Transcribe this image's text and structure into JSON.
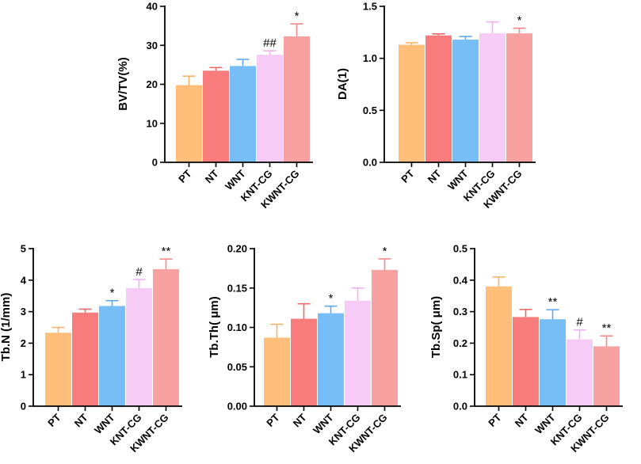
{
  "chart_data": [
    {
      "type": "bar",
      "ylabel": "BV/TV(%)",
      "categories": [
        "PT",
        "NT",
        "WNT",
        "KNT-CG",
        "KWNT-CG"
      ],
      "values": [
        19.8,
        23.5,
        24.7,
        27.6,
        32.3
      ],
      "errors": [
        2.3,
        0.8,
        1.7,
        1.0,
        3.2
      ],
      "significance": [
        "",
        "",
        "",
        "##",
        "*"
      ],
      "ylim": [
        0,
        40
      ],
      "yticks": [
        0,
        10,
        20,
        30,
        40
      ],
      "ytick_labels": [
        "0",
        "10",
        "20",
        "30",
        "40"
      ]
    },
    {
      "type": "bar",
      "ylabel": "DA(1)",
      "categories": [
        "PT",
        "NT",
        "WNT",
        "KNT-CG",
        "KWNT-CG"
      ],
      "values": [
        1.13,
        1.22,
        1.18,
        1.24,
        1.24
      ],
      "errors": [
        0.02,
        0.015,
        0.03,
        0.11,
        0.05
      ],
      "significance": [
        "",
        "",
        "",
        "",
        "*"
      ],
      "ylim": [
        0,
        1.5
      ],
      "yticks": [
        0,
        0.5,
        1.0,
        1.5
      ],
      "ytick_labels": [
        "0.0",
        "0.5",
        "1.0",
        "1.5"
      ]
    },
    {
      "type": "bar",
      "ylabel": "Tb.N (1/mm)",
      "categories": [
        "PT",
        "NT",
        "WNT",
        "KNT-CG",
        "KWNT-CG"
      ],
      "values": [
        2.33,
        2.97,
        3.18,
        3.75,
        4.35
      ],
      "errors": [
        0.17,
        0.11,
        0.17,
        0.27,
        0.32
      ],
      "significance": [
        "",
        "",
        "*",
        "#",
        "**"
      ],
      "ylim": [
        0,
        5
      ],
      "yticks": [
        0,
        1,
        2,
        3,
        4,
        5
      ],
      "ytick_labels": [
        "0",
        "1",
        "2",
        "3",
        "4",
        "5"
      ]
    },
    {
      "type": "bar",
      "ylabel": "Tb.Th( μm)",
      "categories": [
        "PT",
        "NT",
        "WNT",
        "KNT-CG",
        "KWNT-CG"
      ],
      "values": [
        0.087,
        0.111,
        0.118,
        0.134,
        0.173
      ],
      "errors": [
        0.017,
        0.019,
        0.009,
        0.016,
        0.014
      ],
      "significance": [
        "",
        "",
        "*",
        "",
        "*"
      ],
      "ylim": [
        0,
        0.2
      ],
      "yticks": [
        0,
        0.05,
        0.1,
        0.15,
        0.2
      ],
      "ytick_labels": [
        "0.00",
        "0.05",
        "0.10",
        "0.15",
        "0.20"
      ]
    },
    {
      "type": "bar",
      "ylabel": "Tb.Sp( μm)",
      "categories": [
        "PT",
        "NT",
        "WNT",
        "KNT-CG",
        "KWNT-CG"
      ],
      "values": [
        0.38,
        0.283,
        0.276,
        0.212,
        0.19
      ],
      "errors": [
        0.03,
        0.024,
        0.03,
        0.03,
        0.033
      ],
      "significance": [
        "",
        "",
        "**",
        "#",
        "**"
      ],
      "ylim": [
        0,
        0.5
      ],
      "yticks": [
        0,
        0.1,
        0.2,
        0.3,
        0.4,
        0.5
      ],
      "ytick_labels": [
        "0.0",
        "0.1",
        "0.2",
        "0.3",
        "0.4",
        "0.5"
      ]
    }
  ],
  "colors": {
    "bars": [
      "#FFBE7A",
      "#F87C7C",
      "#77BEF7",
      "#F6CCF6",
      "#F8A1A1"
    ],
    "errors": [
      "#F7B26A",
      "#EE6A6A",
      "#5FA9EE",
      "#EFB4EF",
      "#F28A8A"
    ],
    "axis": "#000000"
  }
}
